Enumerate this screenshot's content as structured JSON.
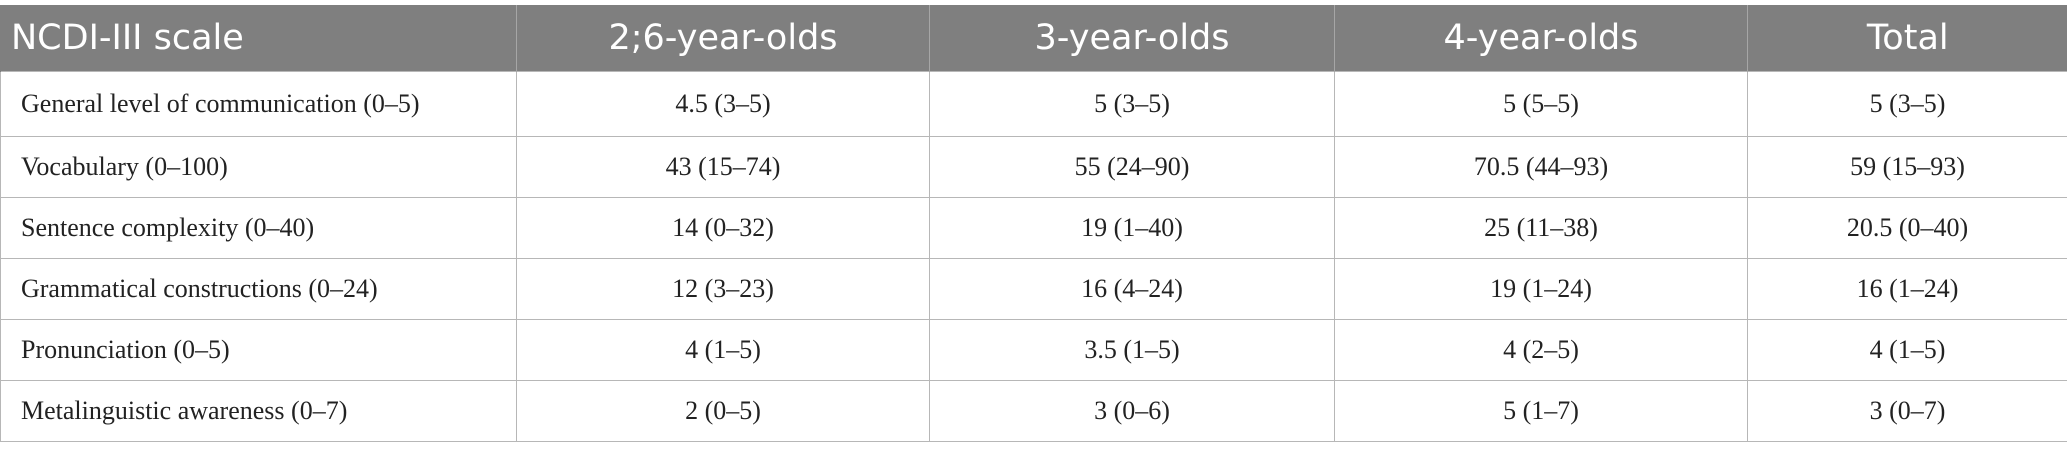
{
  "table": {
    "headers": [
      "NCDI-III scale",
      "2;6-year-olds",
      "3-year-olds",
      "4-year-olds",
      "Total"
    ],
    "rows": [
      [
        "General level of communication (0–5)",
        "4.5 (3–5)",
        "5 (3–5)",
        "5 (5–5)",
        "5 (3–5)"
      ],
      [
        "Vocabulary (0–100)",
        "43 (15–74)",
        "55 (24–90)",
        "70.5 (44–93)",
        "59 (15–93)"
      ],
      [
        "Sentence complexity (0–40)",
        "14 (0–32)",
        "19 (1–40)",
        "25 (11–38)",
        "20.5 (0–40)"
      ],
      [
        "Grammatical constructions (0–24)",
        "12 (3–23)",
        "16 (4–24)",
        "19 (1–24)",
        "16 (1–24)"
      ],
      [
        "Pronunciation (0–5)",
        "4 (1–5)",
        "3.5 (1–5)",
        "4 (2–5)",
        "4 (1–5)"
      ],
      [
        "Metalinguistic awareness (0–7)",
        "2 (0–5)",
        "3 (0–6)",
        "5 (1–7)",
        "3 (0–7)"
      ]
    ]
  },
  "colors": {
    "header_bg": "#7f7f7f",
    "header_text": "#ffffff",
    "grid": "#b7b7b7"
  }
}
